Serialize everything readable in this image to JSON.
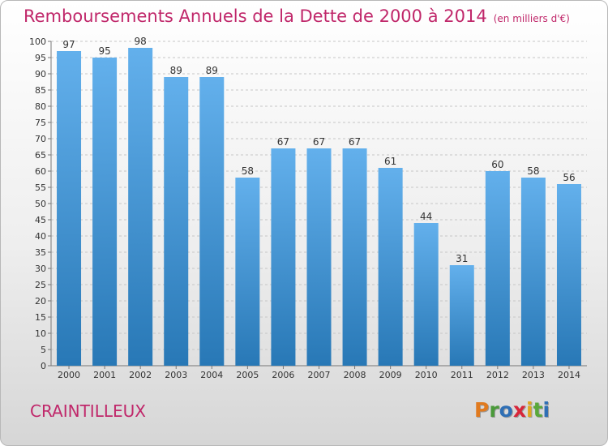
{
  "header": {
    "title": "Remboursements Annuels de la Dette de 2000 à 2014",
    "unit": "(en milliers d'€)"
  },
  "footer": {
    "commune": "CRAINTILLEUX",
    "logo": "Proxiti",
    "logo_letter_colors": [
      "#e07a1f",
      "#4a9a3a",
      "#2f6fb5",
      "#d8263a",
      "#e0a81f",
      "#5aa83a",
      "#2f6fb5"
    ]
  },
  "colors": {
    "title": "#c0276a",
    "bar_top": "#63b0ec",
    "bar_bottom": "#2878b6"
  },
  "chart_data": {
    "type": "bar",
    "title": "Remboursements Annuels de la Dette de 2000 à 2014",
    "categories": [
      "2000",
      "2001",
      "2002",
      "2003",
      "2004",
      "2005",
      "2006",
      "2007",
      "2008",
      "2009",
      "2010",
      "2011",
      "2012",
      "2013",
      "2014"
    ],
    "values": [
      97,
      95,
      98,
      89,
      89,
      58,
      67,
      67,
      67,
      61,
      44,
      31,
      60,
      58,
      56
    ],
    "yticks": [
      0,
      5,
      10,
      15,
      20,
      25,
      30,
      35,
      40,
      45,
      50,
      55,
      60,
      65,
      70,
      75,
      80,
      85,
      90,
      95,
      100
    ],
    "ylim": [
      0,
      100
    ],
    "grid": true,
    "data_labels": true
  }
}
